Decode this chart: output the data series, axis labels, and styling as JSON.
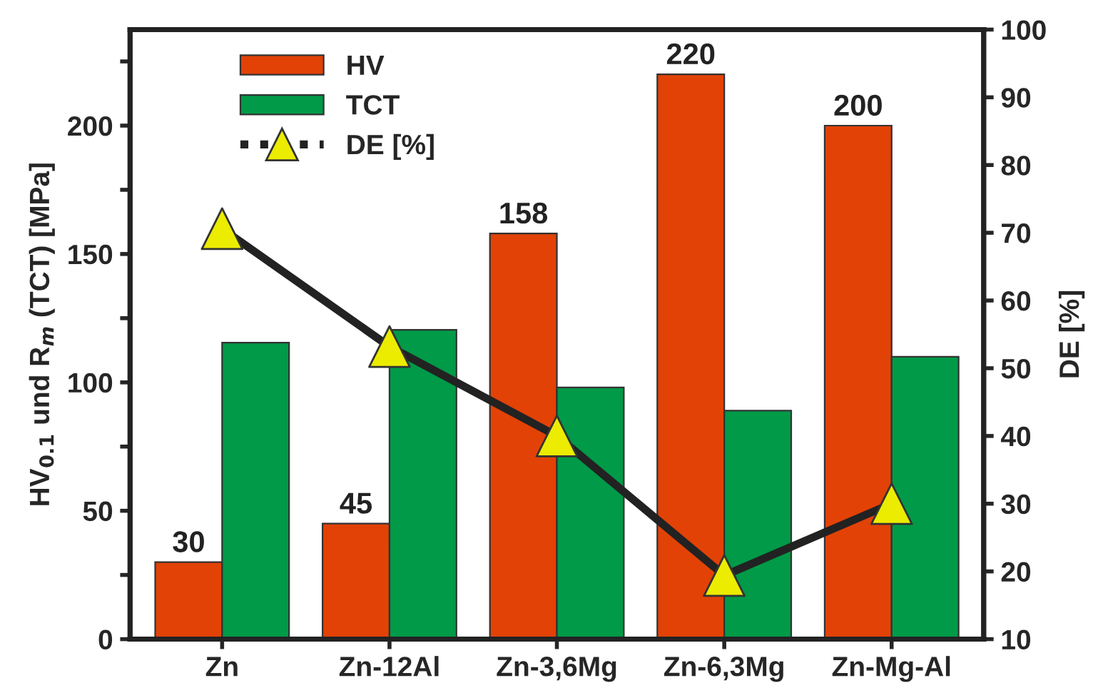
{
  "chart_data": {
    "type": "bar",
    "ylabel": "HV$_{0.1}$ und R$_{m}$ (TCT) [MPa]",
    "y2label": "DE [%]",
    "categories": [
      "Zn",
      "Zn-12Al",
      "Zn-3,6Mg",
      "Zn-6,3Mg",
      "Zn-Mg-Al"
    ],
    "series": [
      {
        "name": "HV",
        "color": "#e24206",
        "values": [
          30,
          45,
          158,
          220,
          200
        ],
        "value_labels": [
          "30",
          "45",
          "158",
          "220",
          "200"
        ]
      },
      {
        "name": "TCT",
        "color": "#009a48",
        "values": [
          115.5,
          120.5,
          98,
          89,
          110
        ]
      },
      {
        "name": "DE [%]",
        "type": "line",
        "axis": "y2",
        "color": "#222222",
        "marker": "triangle",
        "values": [
          70.6,
          53.2,
          40,
          19.4,
          30
        ]
      }
    ],
    "ylim": [
      0,
      237.4
    ],
    "yticks": [
      0,
      {
        "value": 25,
        "label": null
      },
      50,
      {
        "value": 75,
        "label": null
      },
      100,
      {
        "value": 125,
        "label": null
      },
      150,
      {
        "value": 175,
        "label": null
      },
      200,
      {
        "value": 225,
        "label": null
      }
    ],
    "y2lim": [
      10,
      100
    ],
    "y2ticks": [
      10,
      20,
      30,
      40,
      50,
      60,
      70,
      80,
      90,
      100
    ],
    "legend": "top left",
    "grid": false
  }
}
